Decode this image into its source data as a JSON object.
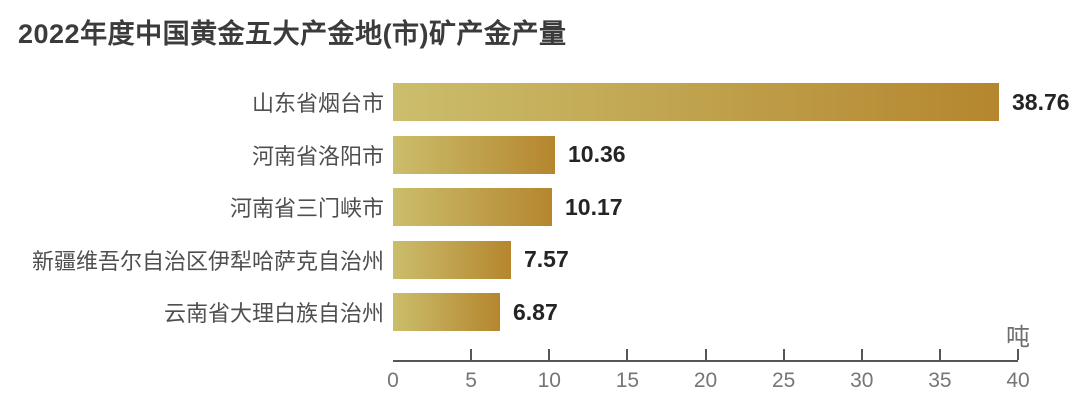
{
  "chart_data": {
    "type": "bar",
    "orientation": "horizontal",
    "title": "2022年度中国黄金五大产金地(市)矿产金产量",
    "unit": "吨",
    "categories": [
      "山东省烟台市",
      "河南省洛阳市",
      "河南省三门峡市",
      "新疆维吾尔自治区伊犁哈萨克自治州",
      "云南省大理白族自治州"
    ],
    "values": [
      38.76,
      10.36,
      10.17,
      7.57,
      6.87
    ],
    "value_labels": [
      "38.76",
      "10.36",
      "10.17",
      "7.57",
      "6.87"
    ],
    "xlim": [
      0,
      40
    ],
    "x_ticks": [
      0,
      5,
      10,
      15,
      20,
      25,
      30,
      35,
      40
    ],
    "grid": false,
    "legend": "none",
    "bar_gradient": {
      "start": "#CBBE6C",
      "end": "#B5862E"
    },
    "colors": {
      "title": "#3b3b3b",
      "category_label": "#4f4f4f",
      "value_label": "#242424",
      "axis": "#565656",
      "tick_label": "#767676",
      "unit_label": "#6e6e6e",
      "background": "#ffffff"
    }
  }
}
